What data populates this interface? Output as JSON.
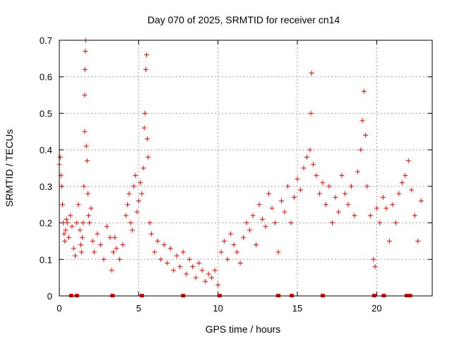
{
  "chart_data": {
    "type": "scatter",
    "title": "Day 070 of 2025, SRMTID for receiver cn14",
    "xlabel": "GPS time / hours",
    "ylabel": "SRMTID / TECUs",
    "xlim": [
      0,
      23.5
    ],
    "ylim": [
      0,
      0.7
    ],
    "xticks": [
      0,
      5,
      10,
      15,
      20
    ],
    "yticks": [
      0,
      0.1,
      0.2,
      0.3,
      0.4,
      0.5,
      0.6,
      0.7
    ],
    "xtick_labels": [
      "0",
      "5",
      "10",
      "15",
      "20"
    ],
    "ytick_labels": [
      "0",
      "0.1",
      "0.2",
      "0.3",
      "0.4",
      "0.5",
      "0.6",
      "0.7"
    ],
    "grid": true,
    "marker": "plus",
    "color": "#ff0000",
    "series": [
      {
        "name": "SRMTID",
        "x": [
          0.0,
          0.05,
          0.1,
          0.15,
          0.2,
          0.25,
          0.3,
          0.35,
          0.4,
          0.45,
          0.5,
          0.6,
          0.7,
          0.8,
          0.9,
          1.0,
          1.1,
          1.2,
          1.3,
          1.35,
          1.4,
          1.45,
          1.5,
          1.55,
          1.6,
          1.6,
          1.62,
          1.64,
          1.66,
          1.7,
          1.75,
          1.8,
          1.85,
          1.9,
          2.0,
          2.1,
          2.2,
          2.4,
          2.6,
          2.8,
          3.0,
          3.2,
          3.3,
          3.4,
          3.5,
          3.6,
          3.8,
          4.0,
          4.2,
          4.3,
          4.4,
          4.5,
          4.6,
          4.7,
          4.8,
          4.9,
          5.0,
          5.1,
          5.2,
          5.3,
          5.35,
          5.4,
          5.45,
          5.5,
          5.55,
          5.6,
          5.7,
          5.8,
          6.0,
          6.2,
          6.4,
          6.6,
          6.8,
          7.0,
          7.2,
          7.4,
          7.6,
          7.8,
          8.0,
          8.2,
          8.4,
          8.6,
          8.8,
          9.0,
          9.2,
          9.4,
          9.6,
          9.8,
          10.0,
          10.2,
          10.4,
          10.6,
          10.8,
          11.0,
          11.2,
          11.4,
          11.6,
          11.8,
          12.0,
          12.2,
          12.4,
          12.6,
          12.8,
          13.0,
          13.2,
          13.4,
          13.6,
          13.8,
          14.0,
          14.2,
          14.4,
          14.6,
          14.8,
          15.0,
          15.2,
          15.4,
          15.6,
          15.8,
          15.85,
          15.9,
          16.0,
          16.2,
          16.4,
          16.6,
          16.8,
          17.0,
          17.2,
          17.4,
          17.6,
          17.8,
          18.0,
          18.2,
          18.4,
          18.6,
          18.8,
          19.0,
          19.1,
          19.2,
          19.3,
          19.4,
          19.6,
          19.8,
          19.9,
          20.0,
          20.2,
          20.4,
          20.6,
          20.8,
          21.0,
          21.2,
          21.4,
          21.6,
          21.8,
          22.0,
          22.2,
          22.4,
          22.6,
          22.8
        ],
        "y": [
          0.36,
          0.38,
          0.33,
          0.3,
          0.25,
          0.2,
          0.17,
          0.15,
          0.18,
          0.21,
          0.2,
          0.16,
          0.22,
          0.19,
          0.13,
          0.11,
          0.2,
          0.25,
          0.18,
          0.14,
          0.12,
          0.16,
          0.2,
          0.3,
          0.45,
          0.55,
          0.62,
          0.67,
          0.7,
          0.41,
          0.37,
          0.28,
          0.22,
          0.2,
          0.24,
          0.15,
          0.12,
          0.17,
          0.14,
          0.1,
          0.19,
          0.16,
          0.07,
          0.12,
          0.16,
          0.13,
          0.1,
          0.14,
          0.22,
          0.25,
          0.28,
          0.2,
          0.18,
          0.3,
          0.33,
          0.23,
          0.26,
          0.31,
          0.28,
          0.35,
          0.46,
          0.5,
          0.62,
          0.66,
          0.43,
          0.38,
          0.2,
          0.17,
          0.12,
          0.15,
          0.1,
          0.14,
          0.09,
          0.13,
          0.07,
          0.11,
          0.08,
          0.12,
          0.06,
          0.1,
          0.08,
          0.05,
          0.09,
          0.07,
          0.04,
          0.06,
          0.05,
          0.07,
          0.03,
          0.12,
          0.15,
          0.1,
          0.17,
          0.14,
          0.12,
          0.09,
          0.16,
          0.2,
          0.18,
          0.22,
          0.14,
          0.25,
          0.21,
          0.19,
          0.28,
          0.24,
          0.2,
          0.12,
          0.26,
          0.23,
          0.3,
          0.2,
          0.27,
          0.32,
          0.29,
          0.35,
          0.38,
          0.4,
          0.5,
          0.61,
          0.36,
          0.33,
          0.28,
          0.31,
          0.25,
          0.3,
          0.2,
          0.27,
          0.23,
          0.33,
          0.28,
          0.25,
          0.3,
          0.22,
          0.34,
          0.4,
          0.48,
          0.56,
          0.44,
          0.3,
          0.22,
          0.1,
          0.08,
          0.24,
          0.2,
          0.27,
          0.24,
          0.15,
          0.25,
          0.2,
          0.28,
          0.31,
          0.33,
          0.37,
          0.29,
          0.22,
          0.15,
          0.26
        ]
      }
    ],
    "data_gaps_x": [
      0.75,
      1.1,
      3.35,
      5.2,
      7.8,
      10.1,
      13.8,
      14.65,
      16.6,
      19.85,
      20.45,
      21.9,
      22.1
    ]
  }
}
